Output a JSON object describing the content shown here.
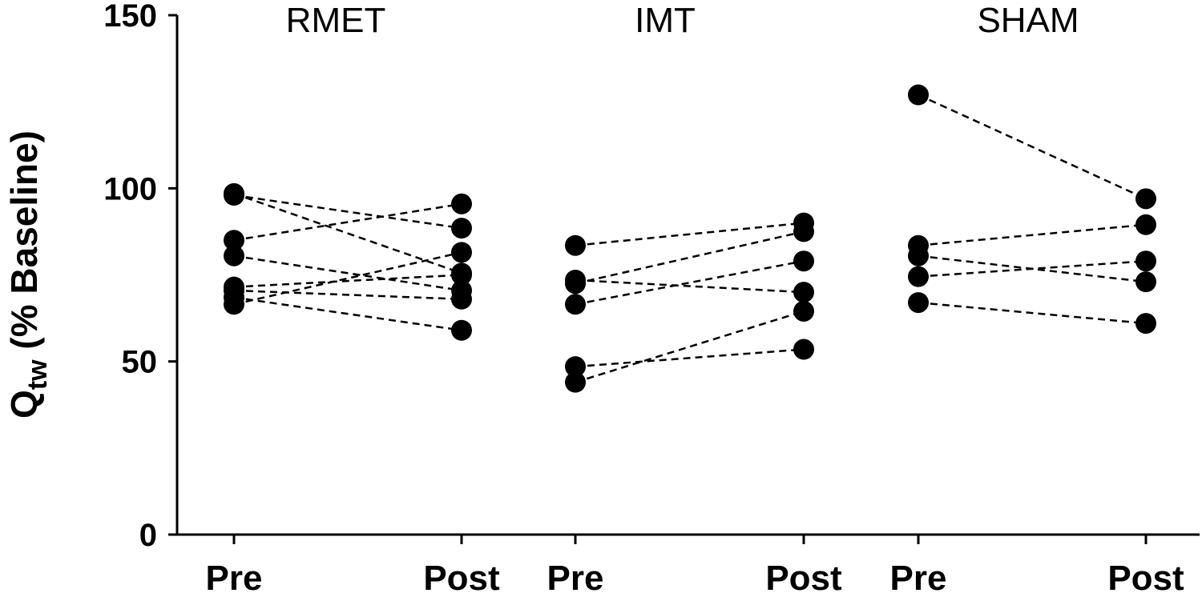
{
  "chart_data": {
    "type": "scatter",
    "ylabel_main": "Q",
    "ylabel_sub": "tw",
    "ylabel_rest": " (% Baseline)",
    "ylim": [
      0,
      150
    ],
    "yticks": [
      0,
      50,
      100,
      150
    ],
    "grid": false,
    "legend": "none",
    "marker_color": "#000000",
    "line_style": "dashed",
    "groups": [
      {
        "title": "RMET",
        "x_labels": [
          "Pre",
          "Post"
        ],
        "pairs": [
          [
            98.5,
            75.5
          ],
          [
            98,
            88.5
          ],
          [
            85,
            95.5
          ],
          [
            80.5,
            70.5
          ],
          [
            71.5,
            75
          ],
          [
            70.5,
            68
          ],
          [
            68.5,
            59
          ],
          [
            66.5,
            81.5
          ]
        ]
      },
      {
        "title": "IMT",
        "x_labels": [
          "Pre",
          "Post"
        ],
        "pairs": [
          [
            83.5,
            90
          ],
          [
            73.5,
            70
          ],
          [
            72.5,
            87.5
          ],
          [
            66.5,
            79
          ],
          [
            48.5,
            53.5
          ],
          [
            44,
            64.5
          ]
        ]
      },
      {
        "title": "SHAM",
        "x_labels": [
          "Pre",
          "Post"
        ],
        "pairs": [
          [
            127,
            97
          ],
          [
            83.5,
            89.5
          ],
          [
            80.5,
            73
          ],
          [
            74.5,
            79
          ],
          [
            67,
            61
          ]
        ]
      }
    ]
  }
}
